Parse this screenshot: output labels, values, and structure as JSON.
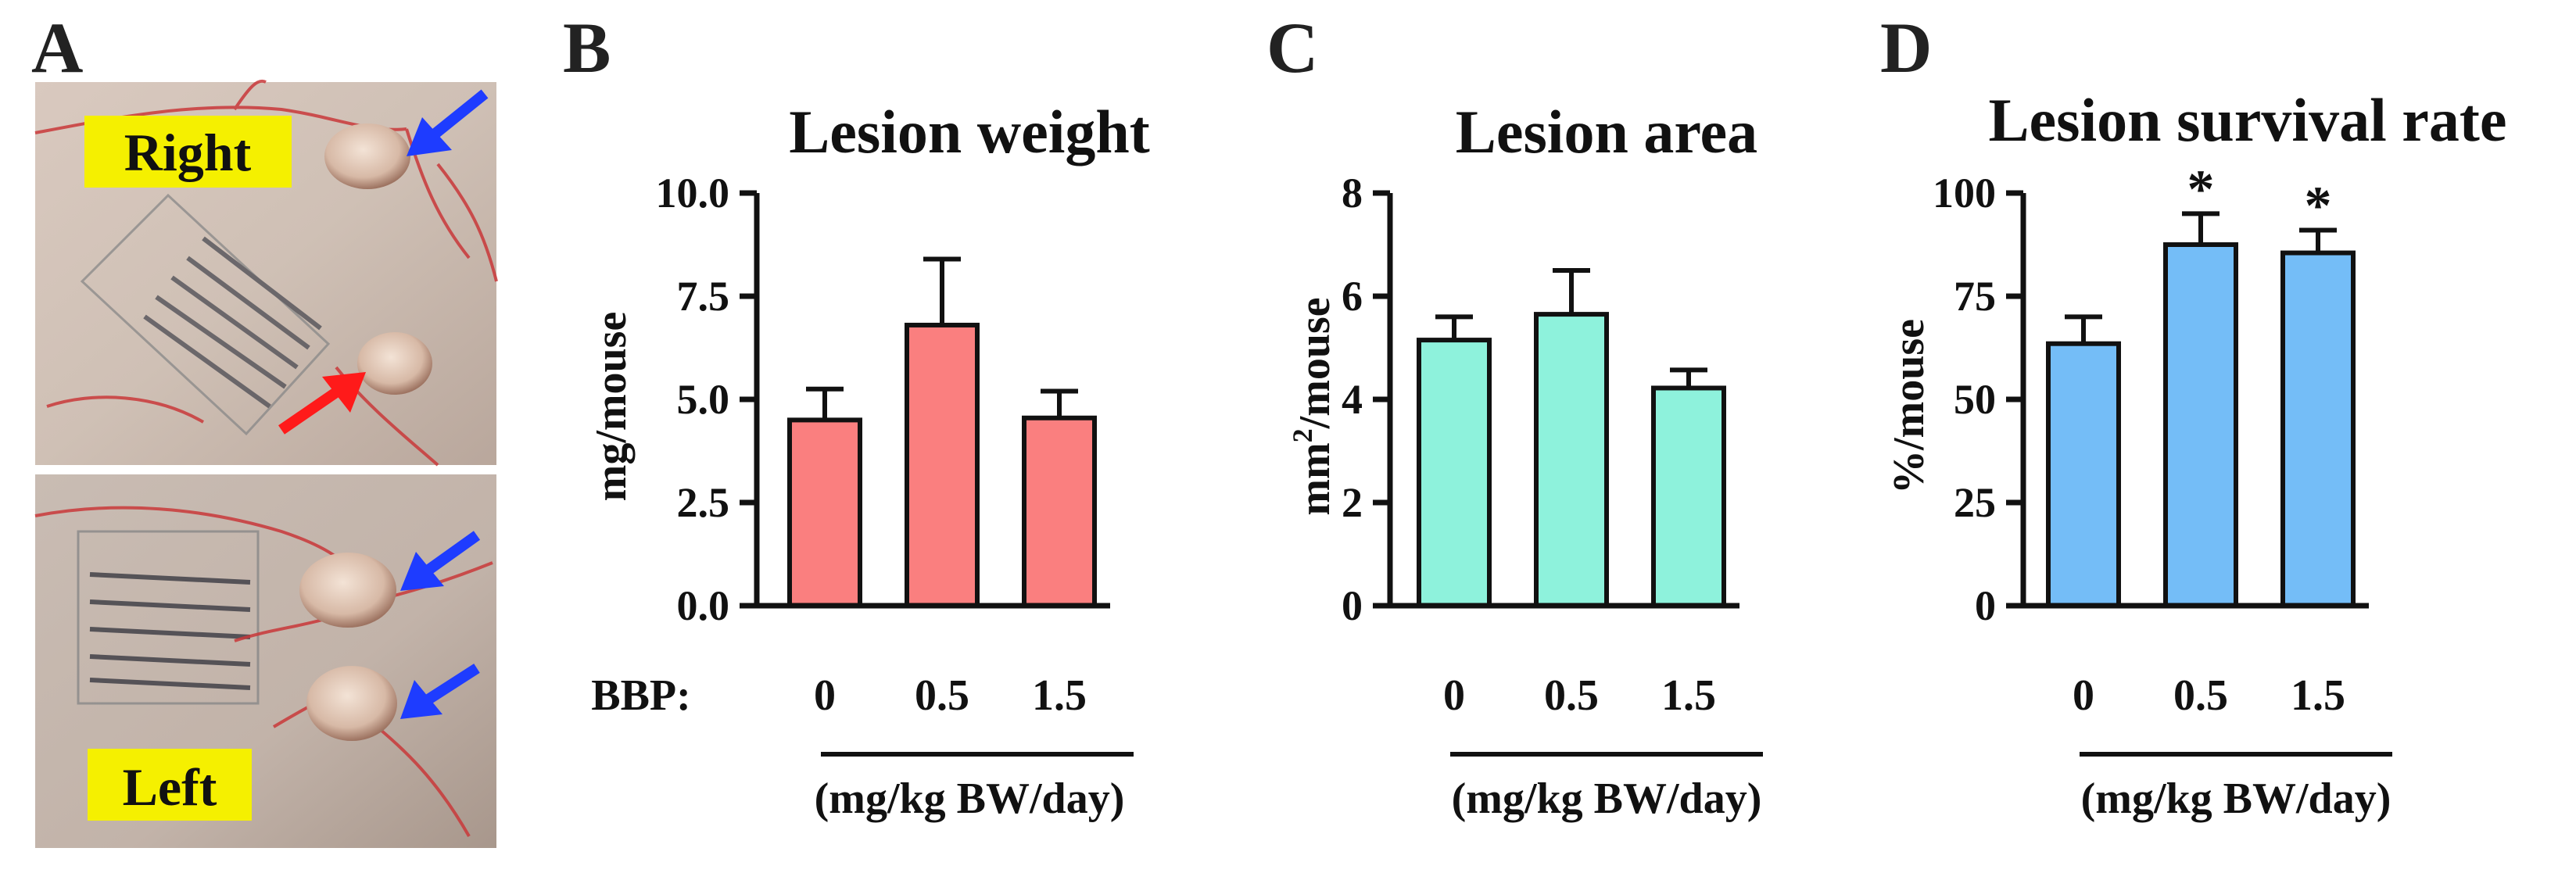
{
  "figure": {
    "panel_a": {
      "letter": "A",
      "top_label": "Right",
      "bottom_label": "Left",
      "arrow_colors": {
        "normal": "#1e3cff",
        "abnormal": "#ff1a1a"
      },
      "label_bg": "#f5f000"
    },
    "x_prefix": "BBP:",
    "unit_label": "(mg/kg BW/day)"
  },
  "chart_data": [
    {
      "panel": "B",
      "type": "bar",
      "title": "Lesion weight",
      "ylabel": "mg/mouse",
      "ylim": [
        0,
        10
      ],
      "yticks": [
        "0.0",
        "2.5",
        "5.0",
        "7.5",
        "10.0"
      ],
      "ytick_values": [
        0,
        2.5,
        5,
        7.5,
        10
      ],
      "categories": [
        "0",
        "0.5",
        "1.5"
      ],
      "values": [
        4.5,
        6.8,
        4.55
      ],
      "errors": [
        0.75,
        1.6,
        0.65
      ],
      "significance": [
        "",
        "",
        ""
      ],
      "color": "#fa7f7f"
    },
    {
      "panel": "C",
      "type": "bar",
      "title": "Lesion area",
      "ylabel_main": "mm",
      "ylabel_sup": "2",
      "ylabel_rest": "/mouse",
      "ylim": [
        0,
        8
      ],
      "yticks": [
        "0",
        "2",
        "4",
        "6",
        "8"
      ],
      "ytick_values": [
        0,
        2,
        4,
        6,
        8
      ],
      "categories": [
        "0",
        "0.5",
        "1.5"
      ],
      "values": [
        5.15,
        5.65,
        4.22
      ],
      "errors": [
        0.45,
        0.85,
        0.35
      ],
      "significance": [
        "",
        "",
        ""
      ],
      "color": "#8ef2dc"
    },
    {
      "panel": "D",
      "type": "bar",
      "title": "Lesion survival rate",
      "ylabel": "%/mouse",
      "ylim": [
        0,
        100
      ],
      "yticks": [
        "0",
        "25",
        "50",
        "75",
        "100"
      ],
      "ytick_values": [
        0,
        25,
        50,
        75,
        100
      ],
      "categories": [
        "0",
        "0.5",
        "1.5"
      ],
      "values": [
        63.5,
        87.5,
        85.5
      ],
      "errors": [
        6.5,
        7.5,
        5.5
      ],
      "significance": [
        "",
        "*",
        "*"
      ],
      "color": "#74bdf7"
    }
  ]
}
